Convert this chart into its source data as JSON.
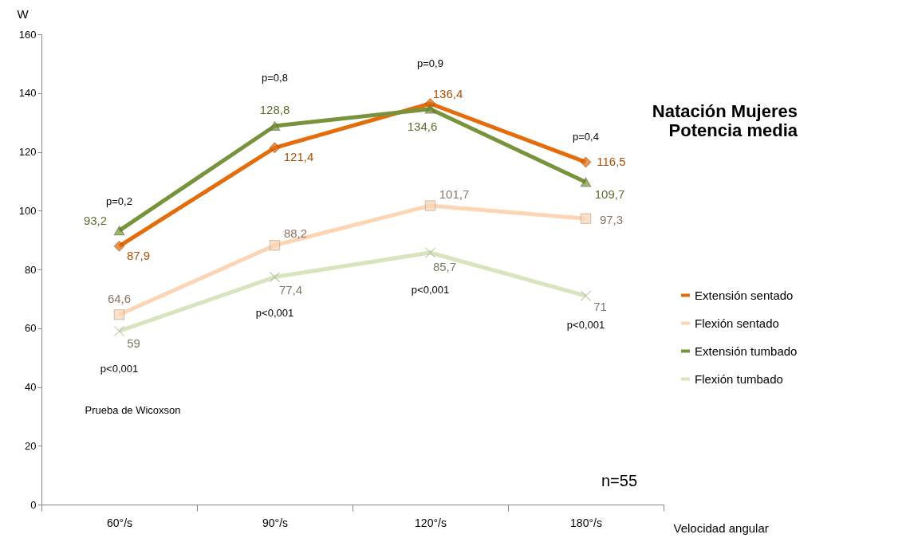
{
  "chart_data": {
    "type": "line",
    "title": "Natación Mujeres\nPotencia media",
    "xlabel": "Velocidad angular",
    "ylabel": "W",
    "categories": [
      "60°/s",
      "90°/s",
      "120°/s",
      "180°/s"
    ],
    "series": [
      {
        "name": "Extensión sentado",
        "color": "#e46c0a",
        "marker": "diamond",
        "values": [
          87.9,
          121.4,
          136.4,
          116.5
        ],
        "value_labels": [
          "87,9",
          "121,4",
          "136,4",
          "116,5"
        ]
      },
      {
        "name": "Flexión sentado",
        "color": "#fcd5b5",
        "marker": "square",
        "values": [
          64.6,
          88.2,
          101.7,
          97.3
        ],
        "value_labels": [
          "64,6",
          "88,2",
          "101,7",
          "97,3"
        ]
      },
      {
        "name": "Extensión tumbado",
        "color": "#77933c",
        "marker": "triangle",
        "values": [
          93.2,
          128.8,
          134.6,
          109.7
        ],
        "value_labels": [
          "93,2",
          "128,8",
          "134,6",
          "109,7"
        ]
      },
      {
        "name": "Flexión tumbado",
        "color": "#d7e4bd",
        "marker": "cross",
        "values": [
          59,
          77.4,
          85.7,
          71
        ],
        "value_labels": [
          "59",
          "77,4",
          "85,7",
          "71"
        ]
      }
    ],
    "annotations": [
      "p=0,2",
      "p<0,001",
      "p=0,8",
      "p<0,001",
      "p=0,9",
      "p<0,001",
      "p=0,4",
      "p<0,001",
      "Prueba de Wicoxson",
      "n=55"
    ],
    "ylim": [
      0,
      160
    ],
    "yticks": [
      0,
      20,
      40,
      60,
      80,
      100,
      120,
      140,
      160
    ],
    "grid": false,
    "legend": "right",
    "line_style": "solid"
  }
}
